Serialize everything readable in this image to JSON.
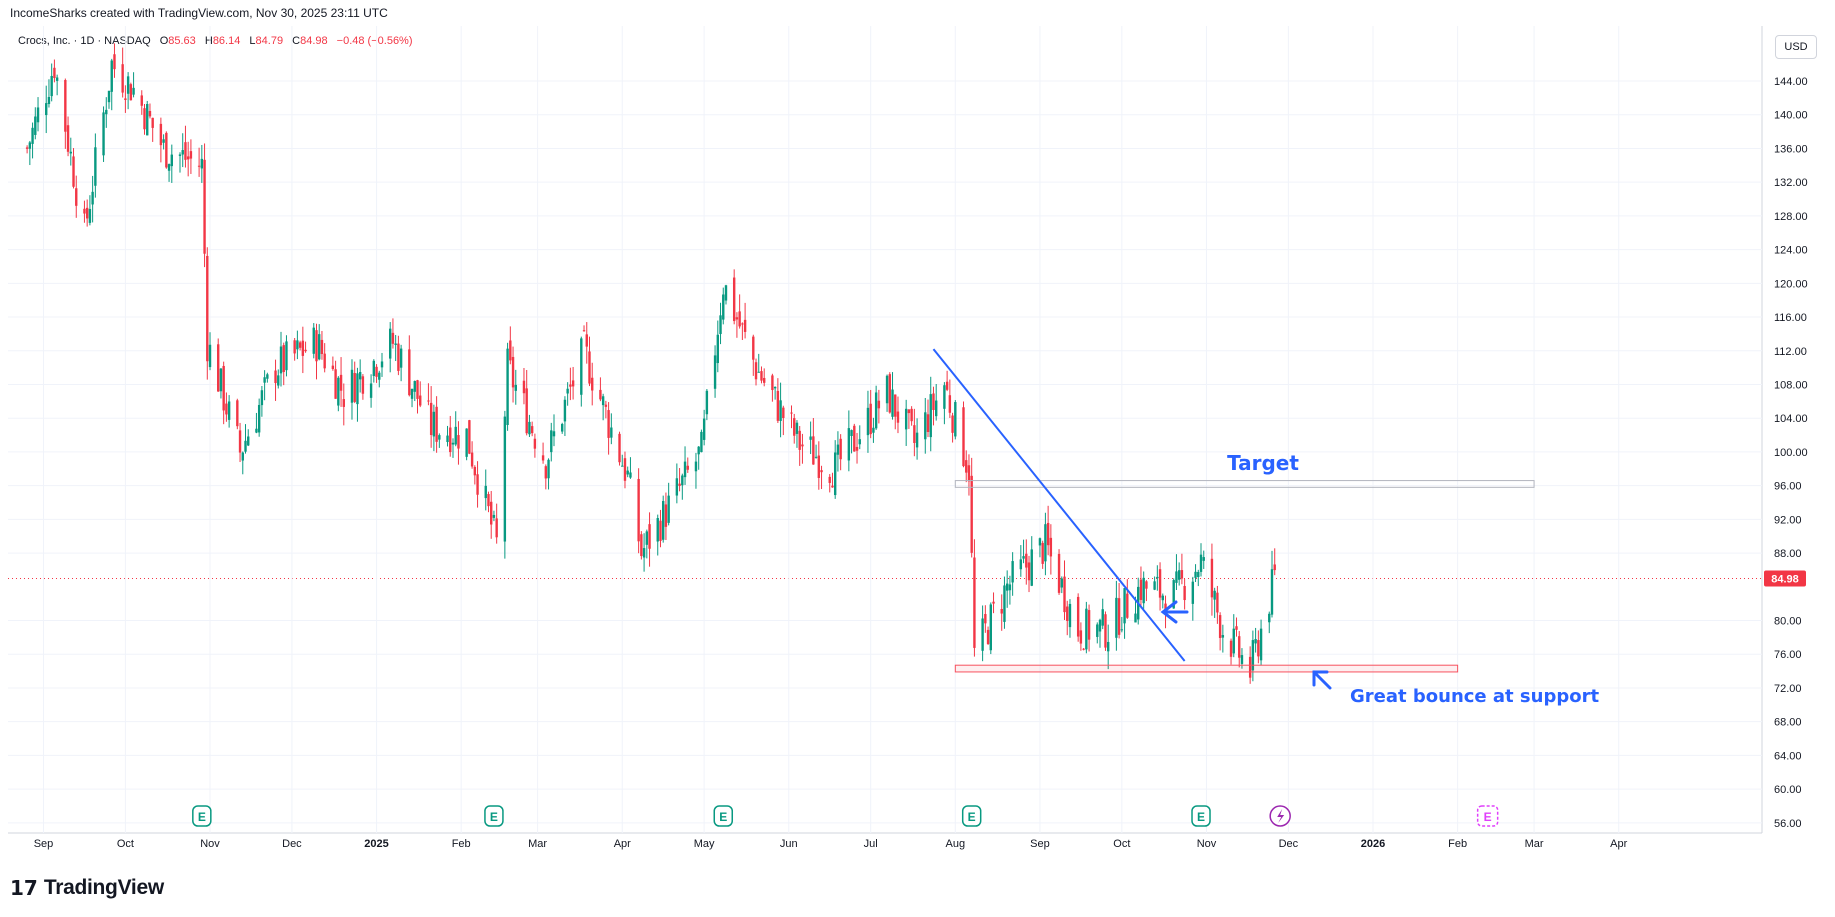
{
  "header": {
    "credit": "IncomeSharks created with TradingView.com, Nov 30, 2025 23:11 UTC"
  },
  "legend": {
    "symbol": "Crocs, Inc. · 1D · NASDAQ",
    "o_label": "O",
    "o_value": "85.63",
    "h_label": "H",
    "h_value": "86.14",
    "l_label": "L",
    "l_value": "84.79",
    "c_label": "C",
    "c_value": "84.98",
    "change": "−0.48 (−0.56%)"
  },
  "currency": "USD",
  "brand": {
    "name": "TradingView",
    "mark": "17"
  },
  "colors": {
    "up": "#089981",
    "down": "#f23645",
    "annotation": "#2962ff",
    "grid": "#f0f3fa",
    "earnings": "#089981",
    "dividend": "#9c27b0"
  },
  "chart_data": {
    "type": "candlestick",
    "title": "Crocs, Inc. · 1D · NASDAQ",
    "ylim": [
      54,
      148
    ],
    "y_ticks": [
      "144.00",
      "140.00",
      "136.00",
      "132.00",
      "128.00",
      "124.00",
      "120.00",
      "116.00",
      "112.00",
      "108.00",
      "104.00",
      "100.00",
      "96.00",
      "92.00",
      "88.00",
      "84.98",
      "80.00",
      "76.00",
      "72.00",
      "68.00",
      "64.00",
      "60.00",
      "56.00"
    ],
    "x_ticks": [
      "Sep",
      "Oct",
      "Nov",
      "Dec",
      "2025",
      "Feb",
      "Mar",
      "Apr",
      "May",
      "Jun",
      "Jul",
      "Aug",
      "Sep",
      "Oct",
      "Nov",
      "Dec",
      "2026",
      "Feb",
      "Mar",
      "Apr"
    ],
    "last_price": 84.98,
    "price_path": [
      {
        "date": "2024-08-26",
        "close": 136
      },
      {
        "date": "2024-09-05",
        "close": 146
      },
      {
        "date": "2024-09-16",
        "close": 126
      },
      {
        "date": "2024-09-26",
        "close": 146
      },
      {
        "date": "2024-10-04",
        "close": 143
      },
      {
        "date": "2024-10-15",
        "close": 136
      },
      {
        "date": "2024-10-29",
        "close": 134
      },
      {
        "date": "2024-10-31",
        "close": 113
      },
      {
        "date": "2024-11-12",
        "close": 100
      },
      {
        "date": "2024-11-25",
        "close": 110
      },
      {
        "date": "2024-12-10",
        "close": 113
      },
      {
        "date": "2024-12-20",
        "close": 107
      },
      {
        "date": "2025-01-07",
        "close": 113
      },
      {
        "date": "2025-01-21",
        "close": 103
      },
      {
        "date": "2025-02-03",
        "close": 102
      },
      {
        "date": "2025-02-14",
        "close": 89
      },
      {
        "date": "2025-02-18",
        "close": 110
      },
      {
        "date": "2025-03-04",
        "close": 99
      },
      {
        "date": "2025-03-18",
        "close": 112
      },
      {
        "date": "2025-04-03",
        "close": 97
      },
      {
        "date": "2025-04-08",
        "close": 88
      },
      {
        "date": "2025-04-30",
        "close": 100
      },
      {
        "date": "2025-05-08",
        "close": 120
      },
      {
        "date": "2025-05-20",
        "close": 110
      },
      {
        "date": "2025-06-05",
        "close": 101
      },
      {
        "date": "2025-06-18",
        "close": 98
      },
      {
        "date": "2025-07-07",
        "close": 107
      },
      {
        "date": "2025-07-17",
        "close": 101
      },
      {
        "date": "2025-07-28",
        "close": 108
      },
      {
        "date": "2025-08-06",
        "close": 98
      },
      {
        "date": "2025-08-08",
        "close": 76
      },
      {
        "date": "2025-08-20",
        "close": 84
      },
      {
        "date": "2025-09-03",
        "close": 89
      },
      {
        "date": "2025-09-15",
        "close": 79
      },
      {
        "date": "2025-09-26",
        "close": 79
      },
      {
        "date": "2025-10-08",
        "close": 84
      },
      {
        "date": "2025-10-20",
        "close": 83
      },
      {
        "date": "2025-10-30",
        "close": 87
      },
      {
        "date": "2025-11-07",
        "close": 79
      },
      {
        "date": "2025-11-17",
        "close": 74
      },
      {
        "date": "2025-11-26",
        "close": 85
      }
    ],
    "earnings_markers": [
      "2024-10-29",
      "2025-02-13",
      "2025-05-08",
      "2025-08-07",
      "2025-10-30"
    ],
    "upcoming_markers": [
      {
        "date": "2025-11-28",
        "icon": "dividend-icon"
      },
      {
        "date": "2026-02-12",
        "icon": "earnings-icon"
      }
    ],
    "annotations": {
      "target_label": "Target",
      "support_label": "Great bounce at support",
      "target_zone": {
        "y_low": 95.8,
        "y_high": 96.6,
        "x_start": "2025-08-01",
        "x_end": "2026-03-01"
      },
      "support_zone": {
        "y_low": 73.9,
        "y_high": 74.7,
        "x_start": "2025-08-01",
        "x_end": "2026-02-01"
      },
      "trendline": {
        "x1": "2025-07-24",
        "y1": 112.2,
        "x2": "2025-10-24",
        "y2": 75.2
      }
    }
  }
}
